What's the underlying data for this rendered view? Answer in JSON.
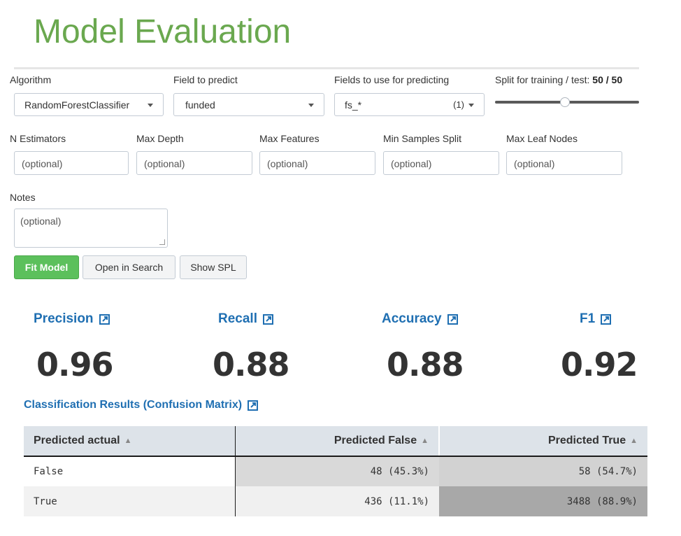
{
  "page": {
    "title": "Model Evaluation"
  },
  "form": {
    "algorithm": {
      "label": "Algorithm",
      "value": "RandomForestClassifier"
    },
    "field_to_predict": {
      "label": "Field to predict",
      "value": "funded"
    },
    "fields_for_predicting": {
      "label": "Fields to use for predicting",
      "value": "fs_*",
      "count": "(1)"
    },
    "split": {
      "label": "Split for training / test:",
      "value": "50 / 50",
      "train_percent": 50
    },
    "params": [
      {
        "label": "N Estimators",
        "placeholder": "(optional)"
      },
      {
        "label": "Max Depth",
        "placeholder": "(optional)"
      },
      {
        "label": "Max Features",
        "placeholder": "(optional)"
      },
      {
        "label": "Min Samples Split",
        "placeholder": "(optional)"
      },
      {
        "label": "Max Leaf Nodes",
        "placeholder": "(optional)"
      }
    ],
    "notes": {
      "label": "Notes",
      "placeholder": "(optional)"
    }
  },
  "buttons": {
    "fit_model": "Fit Model",
    "open_in_search": "Open in Search",
    "show_spl": "Show SPL"
  },
  "metrics": [
    {
      "label": "Precision",
      "value": "0.96"
    },
    {
      "label": "Recall",
      "value": "0.88"
    },
    {
      "label": "Accuracy",
      "value": "0.88"
    },
    {
      "label": "F1",
      "value": "0.92"
    }
  ],
  "confusion_matrix": {
    "title": "Classification Results (Confusion Matrix)",
    "headers": [
      "Predicted actual",
      "Predicted False",
      "Predicted True"
    ],
    "rows": [
      {
        "label": "False",
        "cells": [
          "48 (45.3%)",
          "58 (54.7%)"
        ]
      },
      {
        "label": "True",
        "cells": [
          "436 (11.1%)",
          "3488 (88.9%)"
        ]
      }
    ],
    "cell_colors": [
      [
        "#d9d9d9",
        "#d2d2d2"
      ],
      [
        "#f0f0f0",
        "#a8a8a8"
      ]
    ]
  },
  "icons": {
    "external_link": "external-link-icon",
    "sort": "sort-icon",
    "caret": "caret-down-icon"
  },
  "colors": {
    "title_green": "#6aa84f",
    "link_blue": "#1f6fb2",
    "button_green": "#5cc05c",
    "header_bg": "#dde3e9"
  }
}
